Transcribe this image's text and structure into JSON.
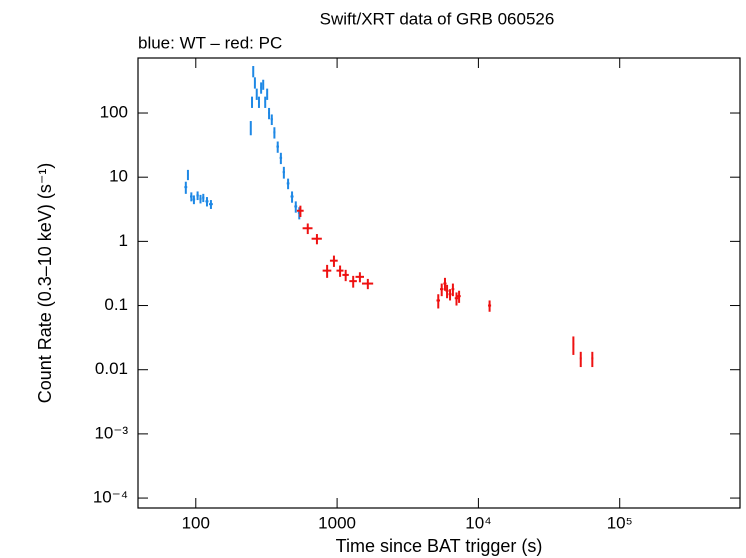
{
  "chart_data": {
    "type": "scatter",
    "title": "Swift/XRT data of GRB 060526",
    "subtitle": "blue: WT – red: PC",
    "x_label": "Time since BAT trigger (s)",
    "y_label": "Count Rate (0.3–10 keV) (s⁻¹)",
    "xscale": "log",
    "yscale": "log",
    "xlim": [
      39,
      710000
    ],
    "ylim": [
      7e-05,
      720
    ],
    "xticks": [
      100,
      1000,
      {
        "value": 10000,
        "label": "10⁴"
      },
      {
        "value": 100000,
        "label": "10⁵"
      }
    ],
    "yticks": [
      {
        "value": 0.0001,
        "label": "10⁻⁴"
      },
      {
        "value": 0.001,
        "label": "10⁻³"
      },
      0.01,
      0.1,
      1,
      10,
      100
    ],
    "series": [
      {
        "color": "#1e88e5",
        "x": [
          85,
          88,
          93,
          97,
          103,
          108,
          113,
          120,
          128,
          245,
          250,
          255,
          262,
          270,
          280,
          290,
          300,
          310,
          320,
          330,
          345,
          360,
          380,
          400,
          420,
          450,
          480,
          510,
          540
        ],
        "values": [
          7,
          11,
          5,
          4.5,
          5.2,
          4.6,
          4.8,
          4.2,
          3.8,
          60,
          150,
          450,
          300,
          200,
          150,
          250,
          280,
          150,
          200,
          100,
          80,
          50,
          30,
          20,
          12,
          8,
          5,
          3.5,
          2.8
        ],
        "xerr": [
          2,
          1,
          2,
          2,
          2,
          2,
          2,
          3,
          4,
          2,
          2,
          3,
          3,
          3,
          4,
          4,
          4,
          4,
          4,
          5,
          6,
          6,
          8,
          8,
          8,
          10,
          12,
          12,
          12
        ],
        "yerr": [
          1.5,
          2,
          0.8,
          0.7,
          0.8,
          0.7,
          0.7,
          0.7,
          0.6,
          15,
          30,
          90,
          60,
          40,
          30,
          50,
          50,
          30,
          40,
          20,
          15,
          10,
          6,
          4,
          2.5,
          1.5,
          1,
          0.7,
          0.6
        ]
      },
      {
        "color": "#ee1111",
        "x": [
          550,
          620,
          720,
          850,
          950,
          1050,
          1150,
          1300,
          1450,
          1650,
          5200,
          5500,
          5800,
          6000,
          6300,
          6600,
          7000,
          7300,
          12000,
          47000,
          53000,
          64000
        ],
        "values": [
          3,
          1.6,
          1.1,
          0.35,
          0.5,
          0.35,
          0.3,
          0.24,
          0.28,
          0.22,
          0.12,
          0.18,
          0.22,
          0.17,
          0.15,
          0.18,
          0.13,
          0.14,
          0.1,
          0.025,
          0.015,
          0.015
        ],
        "xerr": [
          30,
          50,
          60,
          60,
          60,
          60,
          60,
          80,
          100,
          150,
          150,
          150,
          150,
          150,
          150,
          150,
          200,
          200,
          300,
          600,
          800,
          1000
        ],
        "yerr": [
          0.6,
          0.3,
          0.2,
          0.08,
          0.1,
          0.07,
          0.06,
          0.05,
          0.05,
          0.04,
          0.03,
          0.04,
          0.05,
          0.04,
          0.03,
          0.04,
          0.03,
          0.03,
          0.02,
          0.008,
          0.004,
          0.004
        ]
      }
    ]
  }
}
